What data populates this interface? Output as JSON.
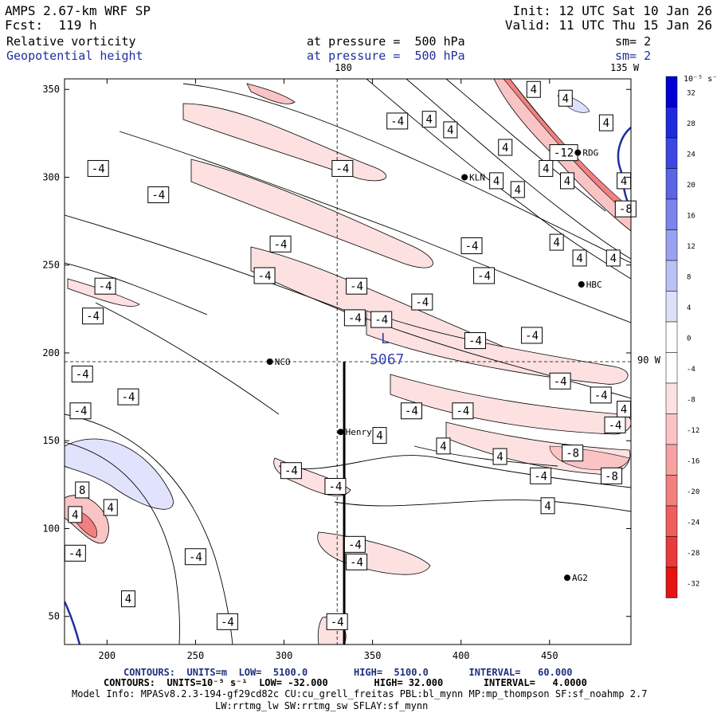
{
  "header": {
    "model": "AMPS 2.67-km WRF SP",
    "forecast": "Fcst:  119 h",
    "init": "Init: 12 UTC Sat 10 Jan 26",
    "valid": "Valid: 11 UTC Thu 15 Jan 26",
    "field1_name": "Relative vorticity",
    "field1_level": "at pressure =  500 hPa",
    "field1_sm": "sm= 2",
    "field2_name": "Geopotential height",
    "field2_level": "at pressure =  500 hPa",
    "field2_sm": "sm= 2"
  },
  "footer": {
    "contours1": "CONTOURS:  UNITS=m  LOW=  5100.0        HIGH=  5100.0       INTERVAL=   60.000",
    "contours2": "CONTOURS:  UNITS=10⁻⁵ s⁻¹  LOW= -32.000        HIGH= 32.000       INTERVAL=   4.0000",
    "model_info1": "Model Info: MPASv8.2.3-194-gf29cd82c CU:cu_grell_freitas PBL:bl_mynn MP:mp_thompson SF:sf_noahmp 2.7",
    "model_info2": "LW:rrtmg_lw SW:rrtmg_sw SFLAY:sf_mynn"
  },
  "chart_data": {
    "type": "contour-map",
    "x_ticks": [
      200,
      250,
      300,
      350,
      400,
      450
    ],
    "y_ticks": [
      50,
      100,
      150,
      200,
      250,
      300,
      350
    ],
    "xlim": [
      176,
      496
    ],
    "ylim": [
      34,
      356
    ],
    "meridian_labels": {
      "top": "180",
      "top_right": "135 W",
      "right": "90 W"
    },
    "cross_lines": {
      "x": 330,
      "y": 195
    },
    "cross_section_x": 334,
    "cross_section_ymin": 34,
    "cross_section_ymax": 195,
    "low_center": {
      "label": "L",
      "value": "5067",
      "x": 352,
      "y": 199
    },
    "stations": [
      {
        "name": "NCO",
        "x": 292,
        "y": 195
      },
      {
        "name": "Henry",
        "x": 332,
        "y": 155
      },
      {
        "name": "KLN",
        "x": 402,
        "y": 300
      },
      {
        "name": "RDG",
        "x": 466,
        "y": 314
      },
      {
        "name": "HBC",
        "x": 468,
        "y": 239
      },
      {
        "name": "AG2",
        "x": 460,
        "y": 72
      }
    ],
    "contour_labels": [
      {
        "v": "4",
        "x": 441,
        "y": 350
      },
      {
        "v": "4",
        "x": 459,
        "y": 345
      },
      {
        "v": "4",
        "x": 482,
        "y": 331
      },
      {
        "v": "-4",
        "x": 364,
        "y": 332
      },
      {
        "v": "4",
        "x": 382,
        "y": 333
      },
      {
        "v": "4",
        "x": 394,
        "y": 327
      },
      {
        "v": "4",
        "x": 425,
        "y": 317
      },
      {
        "v": "-12",
        "x": 458,
        "y": 314
      },
      {
        "v": "-4",
        "x": 195,
        "y": 305
      },
      {
        "v": "-4",
        "x": 333,
        "y": 305
      },
      {
        "v": "4",
        "x": 448,
        "y": 305
      },
      {
        "v": "4",
        "x": 460,
        "y": 298
      },
      {
        "v": "4",
        "x": 492,
        "y": 298
      },
      {
        "v": "4",
        "x": 420,
        "y": 298
      },
      {
        "v": "4",
        "x": 432,
        "y": 293
      },
      {
        "v": "-4",
        "x": 229,
        "y": 290
      },
      {
        "v": "-8",
        "x": 493,
        "y": 282
      },
      {
        "v": "-4",
        "x": 298,
        "y": 262
      },
      {
        "v": "-4",
        "x": 406,
        "y": 261
      },
      {
        "v": "4",
        "x": 454,
        "y": 263
      },
      {
        "v": "4",
        "x": 467,
        "y": 254
      },
      {
        "v": "4",
        "x": 486,
        "y": 254
      },
      {
        "v": "-4",
        "x": 289,
        "y": 244
      },
      {
        "v": "-4",
        "x": 413,
        "y": 244
      },
      {
        "v": "-4",
        "x": 199,
        "y": 238
      },
      {
        "v": "-4",
        "x": 341,
        "y": 238
      },
      {
        "v": "-4",
        "x": 378,
        "y": 229
      },
      {
        "v": "-4",
        "x": 192,
        "y": 221
      },
      {
        "v": "-4",
        "x": 340,
        "y": 220
      },
      {
        "v": "-4",
        "x": 355,
        "y": 219
      },
      {
        "v": "-4",
        "x": 440,
        "y": 210
      },
      {
        "v": "-4",
        "x": 408,
        "y": 207
      },
      {
        "v": "-4",
        "x": 186,
        "y": 188
      },
      {
        "v": "-4",
        "x": 456,
        "y": 184
      },
      {
        "v": "-4",
        "x": 212,
        "y": 175
      },
      {
        "v": "-4",
        "x": 479,
        "y": 176
      },
      {
        "v": "-4",
        "x": 372,
        "y": 167
      },
      {
        "v": "-4",
        "x": 401,
        "y": 167
      },
      {
        "v": "-4",
        "x": 185,
        "y": 167
      },
      {
        "v": "4",
        "x": 492,
        "y": 168
      },
      {
        "v": "-4",
        "x": 487,
        "y": 159
      },
      {
        "v": "4",
        "x": 354,
        "y": 153
      },
      {
        "v": "-8",
        "x": 463,
        "y": 143
      },
      {
        "v": "4",
        "x": 390,
        "y": 147
      },
      {
        "v": "4",
        "x": 422,
        "y": 141
      },
      {
        "v": "-4",
        "x": 304,
        "y": 133
      },
      {
        "v": "-4",
        "x": 445,
        "y": 130
      },
      {
        "v": "-8",
        "x": 485,
        "y": 130
      },
      {
        "v": "-4",
        "x": 329,
        "y": 124
      },
      {
        "v": "8",
        "x": 186,
        "y": 122
      },
      {
        "v": "4",
        "x": 202,
        "y": 112
      },
      {
        "v": "4",
        "x": 182,
        "y": 108
      },
      {
        "v": "4",
        "x": 449,
        "y": 113
      },
      {
        "v": "-4",
        "x": 182,
        "y": 86
      },
      {
        "v": "-4",
        "x": 250,
        "y": 84
      },
      {
        "v": "-4",
        "x": 340,
        "y": 91
      },
      {
        "v": "-4",
        "x": 341,
        "y": 81
      },
      {
        "v": "4",
        "x": 212,
        "y": 60
      },
      {
        "v": "-4",
        "x": 268,
        "y": 47
      },
      {
        "v": "-4",
        "x": 330,
        "y": 47
      }
    ],
    "colorbar": {
      "unit_label": "10⁻⁵ s⁻¹",
      "levels": [
        "32",
        "28",
        "24",
        "20",
        "16",
        "12",
        "8",
        "4",
        "0",
        "-4",
        "-8",
        "-12",
        "-16",
        "-20",
        "-24",
        "-28",
        "-32"
      ],
      "colors": [
        "#0000d4",
        "#1e2adc",
        "#3c46e0",
        "#5a64e4",
        "#7a84ea",
        "#9aa2ef",
        "#bbc1f5",
        "#dde0fb",
        "#ffffff",
        "#ffffff",
        "#fde1e1",
        "#fac4c4",
        "#f6a2a2",
        "#f28080",
        "#ee5e5e",
        "#ea3a3a",
        "#e41414"
      ]
    }
  }
}
